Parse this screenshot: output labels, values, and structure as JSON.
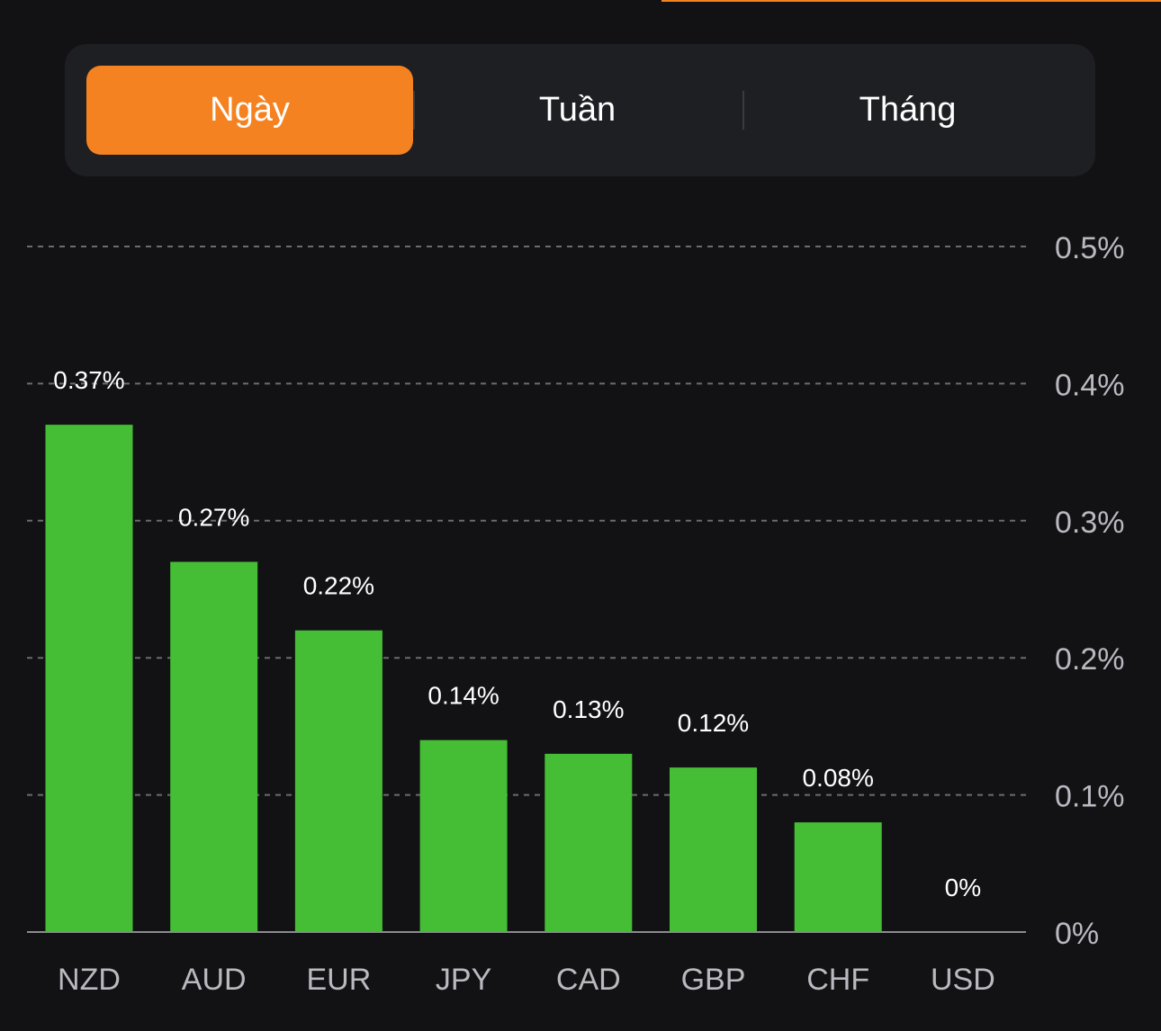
{
  "tabs": [
    {
      "label": "Ngày",
      "active": true
    },
    {
      "label": "Tuần",
      "active": false
    },
    {
      "label": "Tháng",
      "active": false
    }
  ],
  "colors": {
    "background": "#121215",
    "accent": "#f58220",
    "tab_bar": "#1e1f23",
    "bar": "#45bd35",
    "grid": "#6b6b70",
    "axis_text": "#b9b9c0",
    "value_text": "#ffffff"
  },
  "chart_data": {
    "type": "bar",
    "categories": [
      "NZD",
      "AUD",
      "EUR",
      "JPY",
      "CAD",
      "GBP",
      "CHF",
      "USD"
    ],
    "values": [
      0.37,
      0.27,
      0.22,
      0.14,
      0.13,
      0.12,
      0.08,
      0
    ],
    "value_labels": [
      "0.37%",
      "0.27%",
      "0.22%",
      "0.14%",
      "0.13%",
      "0.12%",
      "0.08%",
      "0%"
    ],
    "y_ticks": [
      0,
      0.1,
      0.2,
      0.3,
      0.4,
      0.5
    ],
    "y_tick_labels": [
      "0%",
      "0.1%",
      "0.2%",
      "0.3%",
      "0.4%",
      "0.5%"
    ],
    "ylim": [
      0,
      0.5
    ],
    "y_axis_side": "right",
    "grid": "dashed-horizontal",
    "title": "",
    "xlabel": "",
    "ylabel": ""
  }
}
